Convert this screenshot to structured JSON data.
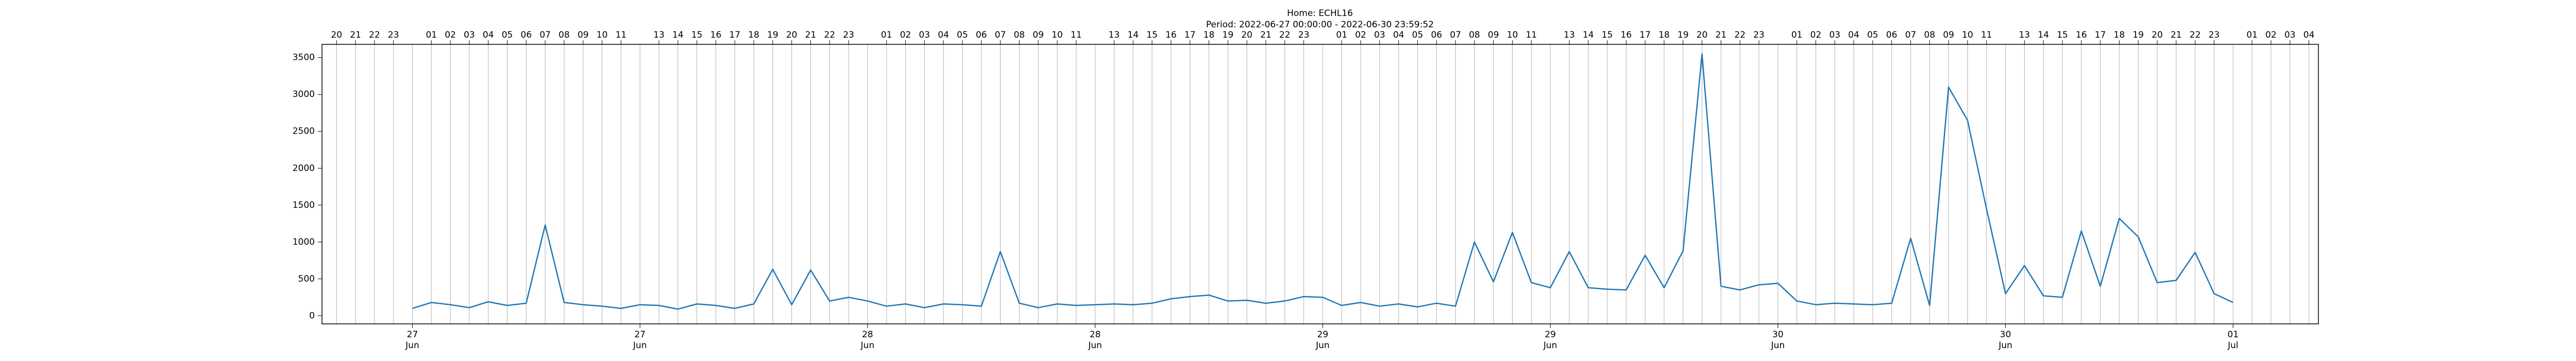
{
  "chart_data": {
    "type": "line",
    "title": "Home: ECHL16",
    "subtitle": "Period: 2022-06-27 00:00:00 - 2022-06-30 23:59:52",
    "color": "#1f77b4",
    "grid": true,
    "xlim": [
      "2022-06-26T19:14",
      "2022-07-01T04:30"
    ],
    "ylim": [
      -110,
      3680
    ],
    "yticks": [
      0,
      500,
      1000,
      1500,
      2000,
      2500,
      3000,
      3500
    ],
    "xticks": [
      {
        "value": "2022-06-27T00:00",
        "label": "27\nJun"
      },
      {
        "value": "2022-06-27T12:00",
        "label": "27\nJun"
      },
      {
        "value": "2022-06-28T00:00",
        "label": "28\nJun"
      },
      {
        "value": "2022-06-28T12:00",
        "label": "28\nJun"
      },
      {
        "value": "2022-06-29T00:00",
        "label": "29\nJun"
      },
      {
        "value": "2022-06-29T12:00",
        "label": "29\nJun"
      },
      {
        "value": "2022-06-30T00:00",
        "label": "30\nJun"
      },
      {
        "value": "2022-06-30T12:00",
        "label": "30\nJun"
      },
      {
        "value": "2022-07-01T00:00",
        "label": "01\nJul"
      }
    ],
    "x2ticks": [
      {
        "value": "2022-06-26T20:00",
        "label": "20"
      },
      {
        "value": "2022-06-26T21:00",
        "label": "21"
      },
      {
        "value": "2022-06-26T22:00",
        "label": "22"
      },
      {
        "value": "2022-06-26T23:00",
        "label": "23"
      },
      {
        "value": "2022-06-27T01:00",
        "label": "01"
      },
      {
        "value": "2022-06-27T02:00",
        "label": "02"
      },
      {
        "value": "2022-06-27T03:00",
        "label": "03"
      },
      {
        "value": "2022-06-27T04:00",
        "label": "04"
      },
      {
        "value": "2022-06-27T05:00",
        "label": "05"
      },
      {
        "value": "2022-06-27T06:00",
        "label": "06"
      },
      {
        "value": "2022-06-27T07:00",
        "label": "07"
      },
      {
        "value": "2022-06-27T08:00",
        "label": "08"
      },
      {
        "value": "2022-06-27T09:00",
        "label": "09"
      },
      {
        "value": "2022-06-27T10:00",
        "label": "10"
      },
      {
        "value": "2022-06-27T11:00",
        "label": "11"
      },
      {
        "value": "2022-06-27T13:00",
        "label": "13"
      },
      {
        "value": "2022-06-27T14:00",
        "label": "14"
      },
      {
        "value": "2022-06-27T15:00",
        "label": "15"
      },
      {
        "value": "2022-06-27T16:00",
        "label": "16"
      },
      {
        "value": "2022-06-27T17:00",
        "label": "17"
      },
      {
        "value": "2022-06-27T18:00",
        "label": "18"
      },
      {
        "value": "2022-06-27T19:00",
        "label": "19"
      },
      {
        "value": "2022-06-27T20:00",
        "label": "20"
      },
      {
        "value": "2022-06-27T21:00",
        "label": "21"
      },
      {
        "value": "2022-06-27T22:00",
        "label": "22"
      },
      {
        "value": "2022-06-27T23:00",
        "label": "23"
      },
      {
        "value": "2022-06-28T01:00",
        "label": "01"
      },
      {
        "value": "2022-06-28T02:00",
        "label": "02"
      },
      {
        "value": "2022-06-28T03:00",
        "label": "03"
      },
      {
        "value": "2022-06-28T04:00",
        "label": "04"
      },
      {
        "value": "2022-06-28T05:00",
        "label": "05"
      },
      {
        "value": "2022-06-28T06:00",
        "label": "06"
      },
      {
        "value": "2022-06-28T07:00",
        "label": "07"
      },
      {
        "value": "2022-06-28T08:00",
        "label": "08"
      },
      {
        "value": "2022-06-28T09:00",
        "label": "09"
      },
      {
        "value": "2022-06-28T10:00",
        "label": "10"
      },
      {
        "value": "2022-06-28T11:00",
        "label": "11"
      },
      {
        "value": "2022-06-28T13:00",
        "label": "13"
      },
      {
        "value": "2022-06-28T14:00",
        "label": "14"
      },
      {
        "value": "2022-06-28T15:00",
        "label": "15"
      },
      {
        "value": "2022-06-28T16:00",
        "label": "16"
      },
      {
        "value": "2022-06-28T17:00",
        "label": "17"
      },
      {
        "value": "2022-06-28T18:00",
        "label": "18"
      },
      {
        "value": "2022-06-28T19:00",
        "label": "19"
      },
      {
        "value": "2022-06-28T20:00",
        "label": "20"
      },
      {
        "value": "2022-06-28T21:00",
        "label": "21"
      },
      {
        "value": "2022-06-28T22:00",
        "label": "22"
      },
      {
        "value": "2022-06-28T23:00",
        "label": "23"
      },
      {
        "value": "2022-06-29T01:00",
        "label": "01"
      },
      {
        "value": "2022-06-29T02:00",
        "label": "02"
      },
      {
        "value": "2022-06-29T03:00",
        "label": "03"
      },
      {
        "value": "2022-06-29T04:00",
        "label": "04"
      },
      {
        "value": "2022-06-29T05:00",
        "label": "05"
      },
      {
        "value": "2022-06-29T06:00",
        "label": "06"
      },
      {
        "value": "2022-06-29T07:00",
        "label": "07"
      },
      {
        "value": "2022-06-29T08:00",
        "label": "08"
      },
      {
        "value": "2022-06-29T09:00",
        "label": "09"
      },
      {
        "value": "2022-06-29T10:00",
        "label": "10"
      },
      {
        "value": "2022-06-29T11:00",
        "label": "11"
      },
      {
        "value": "2022-06-29T13:00",
        "label": "13"
      },
      {
        "value": "2022-06-29T14:00",
        "label": "14"
      },
      {
        "value": "2022-06-29T15:00",
        "label": "15"
      },
      {
        "value": "2022-06-29T16:00",
        "label": "16"
      },
      {
        "value": "2022-06-29T17:00",
        "label": "17"
      },
      {
        "value": "2022-06-29T18:00",
        "label": "18"
      },
      {
        "value": "2022-06-29T19:00",
        "label": "19"
      },
      {
        "value": "2022-06-29T20:00",
        "label": "20"
      },
      {
        "value": "2022-06-29T21:00",
        "label": "21"
      },
      {
        "value": "2022-06-29T22:00",
        "label": "22"
      },
      {
        "value": "2022-06-29T23:00",
        "label": "23"
      },
      {
        "value": "2022-06-30T01:00",
        "label": "01"
      },
      {
        "value": "2022-06-30T02:00",
        "label": "02"
      },
      {
        "value": "2022-06-30T03:00",
        "label": "03"
      },
      {
        "value": "2022-06-30T04:00",
        "label": "04"
      },
      {
        "value": "2022-06-30T05:00",
        "label": "05"
      },
      {
        "value": "2022-06-30T06:00",
        "label": "06"
      },
      {
        "value": "2022-06-30T07:00",
        "label": "07"
      },
      {
        "value": "2022-06-30T08:00",
        "label": "08"
      },
      {
        "value": "2022-06-30T09:00",
        "label": "09"
      },
      {
        "value": "2022-06-30T10:00",
        "label": "10"
      },
      {
        "value": "2022-06-30T11:00",
        "label": "11"
      },
      {
        "value": "2022-06-30T13:00",
        "label": "13"
      },
      {
        "value": "2022-06-30T14:00",
        "label": "14"
      },
      {
        "value": "2022-06-30T15:00",
        "label": "15"
      },
      {
        "value": "2022-06-30T16:00",
        "label": "16"
      },
      {
        "value": "2022-06-30T17:00",
        "label": "17"
      },
      {
        "value": "2022-06-30T18:00",
        "label": "18"
      },
      {
        "value": "2022-06-30T19:00",
        "label": "19"
      },
      {
        "value": "2022-06-30T20:00",
        "label": "20"
      },
      {
        "value": "2022-06-30T21:00",
        "label": "21"
      },
      {
        "value": "2022-06-30T22:00",
        "label": "22"
      },
      {
        "value": "2022-06-30T23:00",
        "label": "23"
      },
      {
        "value": "2022-07-01T01:00",
        "label": "01"
      },
      {
        "value": "2022-07-01T02:00",
        "label": "02"
      },
      {
        "value": "2022-07-01T03:00",
        "label": "03"
      },
      {
        "value": "2022-07-01T04:00",
        "label": "04"
      }
    ],
    "x": [
      "2022-06-27T00:00",
      "2022-06-27T01:00",
      "2022-06-27T02:00",
      "2022-06-27T03:00",
      "2022-06-27T04:00",
      "2022-06-27T05:00",
      "2022-06-27T06:00",
      "2022-06-27T07:00",
      "2022-06-27T08:00",
      "2022-06-27T09:00",
      "2022-06-27T10:00",
      "2022-06-27T11:00",
      "2022-06-27T12:00",
      "2022-06-27T13:00",
      "2022-06-27T14:00",
      "2022-06-27T15:00",
      "2022-06-27T16:00",
      "2022-06-27T17:00",
      "2022-06-27T18:00",
      "2022-06-27T19:00",
      "2022-06-27T20:00",
      "2022-06-27T21:00",
      "2022-06-27T22:00",
      "2022-06-27T23:00",
      "2022-06-28T00:00",
      "2022-06-28T01:00",
      "2022-06-28T02:00",
      "2022-06-28T03:00",
      "2022-06-28T04:00",
      "2022-06-28T05:00",
      "2022-06-28T06:00",
      "2022-06-28T07:00",
      "2022-06-28T08:00",
      "2022-06-28T09:00",
      "2022-06-28T10:00",
      "2022-06-28T11:00",
      "2022-06-28T12:00",
      "2022-06-28T13:00",
      "2022-06-28T14:00",
      "2022-06-28T15:00",
      "2022-06-28T16:00",
      "2022-06-28T17:00",
      "2022-06-28T18:00",
      "2022-06-28T19:00",
      "2022-06-28T20:00",
      "2022-06-28T21:00",
      "2022-06-28T22:00",
      "2022-06-28T23:00",
      "2022-06-29T00:00",
      "2022-06-29T01:00",
      "2022-06-29T02:00",
      "2022-06-29T03:00",
      "2022-06-29T04:00",
      "2022-06-29T05:00",
      "2022-06-29T06:00",
      "2022-06-29T07:00",
      "2022-06-29T08:00",
      "2022-06-29T09:00",
      "2022-06-29T10:00",
      "2022-06-29T11:00",
      "2022-06-29T12:00",
      "2022-06-29T13:00",
      "2022-06-29T14:00",
      "2022-06-29T15:00",
      "2022-06-29T16:00",
      "2022-06-29T17:00",
      "2022-06-29T18:00",
      "2022-06-29T19:00",
      "2022-06-29T20:00",
      "2022-06-29T21:00",
      "2022-06-29T22:00",
      "2022-06-29T23:00",
      "2022-06-30T00:00",
      "2022-06-30T01:00",
      "2022-06-30T02:00",
      "2022-06-30T03:00",
      "2022-06-30T04:00",
      "2022-06-30T05:00",
      "2022-06-30T06:00",
      "2022-06-30T07:00",
      "2022-06-30T08:00",
      "2022-06-30T09:00",
      "2022-06-30T10:00",
      "2022-06-30T11:00",
      "2022-06-30T12:00",
      "2022-06-30T13:00",
      "2022-06-30T14:00",
      "2022-06-30T15:00",
      "2022-06-30T16:00",
      "2022-06-30T17:00",
      "2022-06-30T18:00",
      "2022-06-30T19:00",
      "2022-06-30T20:00",
      "2022-06-30T21:00",
      "2022-06-30T22:00",
      "2022-06-30T23:00",
      "2022-07-01T00:00"
    ],
    "values": [
      100,
      180,
      150,
      110,
      190,
      140,
      170,
      1230,
      180,
      150,
      130,
      100,
      150,
      140,
      90,
      160,
      140,
      100,
      160,
      630,
      150,
      620,
      200,
      250,
      200,
      130,
      160,
      110,
      160,
      150,
      130,
      870,
      170,
      110,
      160,
      140,
      150,
      160,
      150,
      170,
      230,
      260,
      280,
      200,
      210,
      170,
      200,
      260,
      250,
      140,
      180,
      130,
      160,
      120,
      170,
      130,
      1000,
      460,
      1130,
      450,
      380,
      870,
      380,
      360,
      350,
      820,
      380,
      880,
      3550,
      400,
      350,
      420,
      440,
      200,
      150,
      170,
      160,
      150,
      170,
      1050,
      140,
      3100,
      2650,
      1450,
      300,
      680,
      270,
      250,
      1150,
      400,
      1320,
      1070,
      450,
      480,
      860,
      300,
      180
    ]
  }
}
